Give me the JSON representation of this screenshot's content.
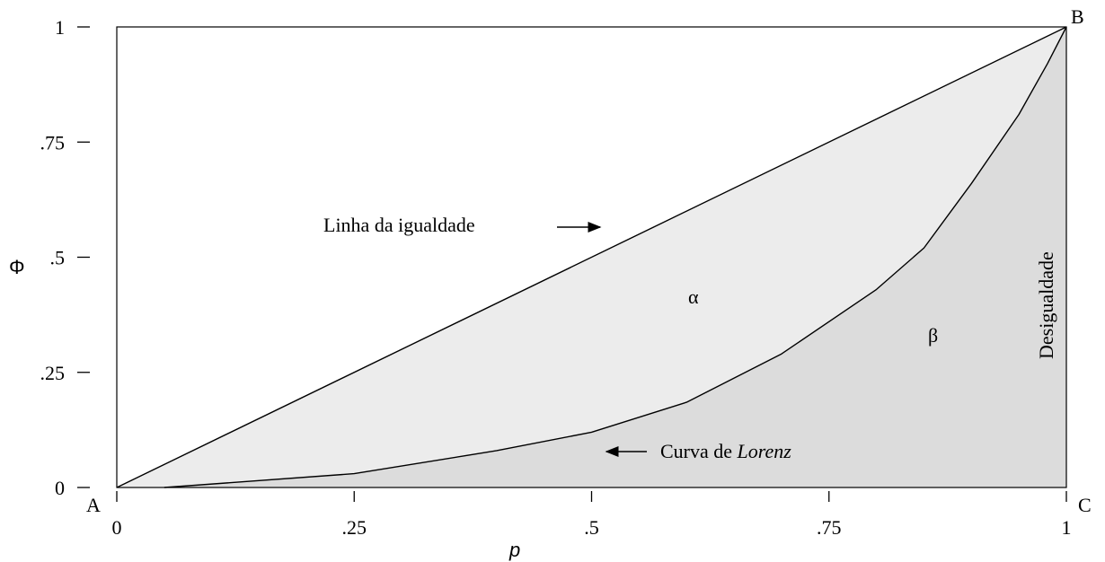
{
  "chart_data": {
    "type": "line",
    "series": [
      {
        "color": "#000000",
        "x": [
          0,
          1
        ],
        "values": [
          0,
          1
        ]
      },
      {
        "color": "#000000",
        "x": [
          0.05,
          0.25,
          0.4,
          0.5,
          0.6,
          0.7,
          0.8,
          0.85,
          0.9,
          0.95,
          0.98,
          1
        ],
        "values": [
          0,
          0.03,
          0.08,
          0.12,
          0.185,
          0.29,
          0.43,
          0.52,
          0.66,
          0.81,
          0.92,
          1
        ]
      }
    ],
    "area_colors": [
      "#ececec",
      "#dcdcdc"
    ],
    "xlabel": "p",
    "ylabel": "Φ",
    "xlim": [
      0,
      1
    ],
    "ylim": [
      0,
      1
    ],
    "xticks": [
      0,
      {
        "value": 0.25,
        "label": ".25"
      },
      {
        "value": 0.5,
        "label": ".5"
      },
      {
        "value": 0.75,
        "label": ".75"
      },
      1
    ],
    "yticks": [
      0,
      {
        "value": 0.25,
        "label": ".25"
      },
      {
        "value": 0.5,
        "label": ".5"
      },
      {
        "value": 0.75,
        "label": ".75"
      },
      1
    ],
    "annotations": {
      "equality": "Linha da igualdade",
      "alpha": "α",
      "beta": "β",
      "lorenz_prefix": "Curva de",
      "lorenz_name": "Lorenz",
      "inequality": "Desigualdade",
      "corner_a": "A",
      "corner_b": "B",
      "corner_c": "C"
    }
  }
}
